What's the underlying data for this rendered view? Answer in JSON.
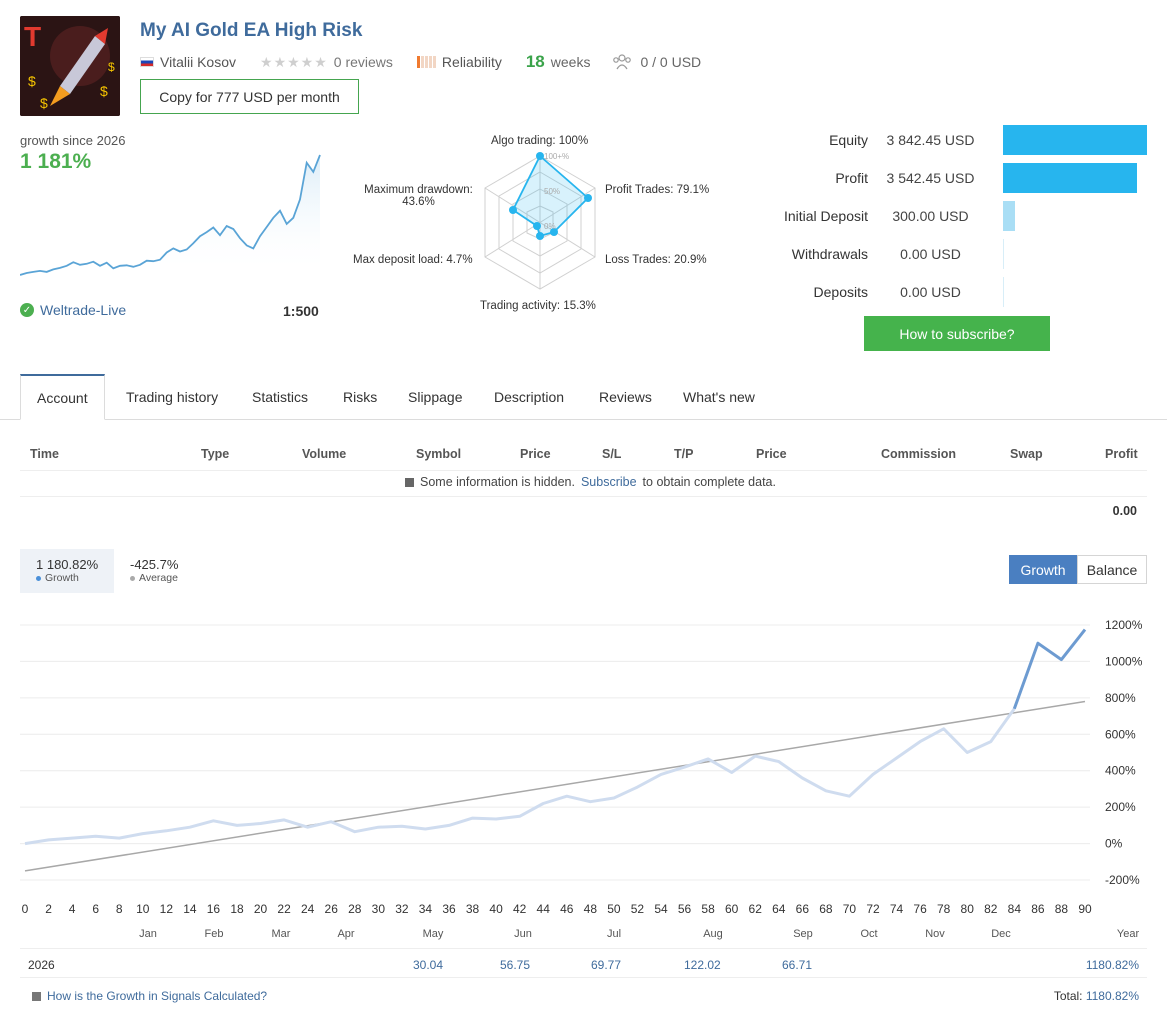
{
  "header": {
    "title": "My AI Gold EA High Risk",
    "author": "Vitalii Kosov",
    "reviews": "0 reviews",
    "reliability": "Reliability",
    "weeks_num": "18",
    "weeks_label": "weeks",
    "subscribers": "0 / 0 USD",
    "copy_button": "Copy for 777 USD per month"
  },
  "growth": {
    "label": "growth since 2026",
    "value": "1 181%",
    "broker": "Weltrade-Live",
    "leverage": "1:500"
  },
  "radar": {
    "algo": "Algo trading: 100%",
    "profit_trades": "Profit Trades: 79.1%",
    "loss_trades": "Loss Trades: 20.9%",
    "activity": "Trading activity: 15.3%",
    "deposit_load": "Max deposit load: 4.7%",
    "drawdown": "Maximum drawdown:",
    "drawdown_val": "43.6%",
    "scale_100": "100+%",
    "scale_50": "50%",
    "scale_0": "0%"
  },
  "summary": [
    {
      "label": "Equity",
      "value": "3 842.45 USD",
      "bar": 1.0
    },
    {
      "label": "Profit",
      "value": "3 542.45 USD",
      "bar": 0.93
    },
    {
      "label": "Initial Deposit",
      "value": "300.00 USD",
      "bar": 0.08
    },
    {
      "label": "Withdrawals",
      "value": "0.00 USD",
      "bar": 0.0
    },
    {
      "label": "Deposits",
      "value": "0.00 USD",
      "bar": 0.0
    }
  ],
  "how_button": "How to subscribe?",
  "tabs": [
    "Account",
    "Trading history",
    "Statistics",
    "Risks",
    "Slippage",
    "Description",
    "Reviews",
    "What's new"
  ],
  "table": {
    "headers": [
      "Time",
      "Type",
      "Volume",
      "Symbol",
      "Price",
      "S/L",
      "T/P",
      "Price",
      "Commission",
      "Swap",
      "Profit"
    ],
    "hidden_pre": "Some information is hidden.",
    "hidden_link": "Subscribe",
    "hidden_post": "to obtain complete data.",
    "total": "0.00"
  },
  "legend": {
    "growth_val": "1 180.82%",
    "growth_lbl": "Growth",
    "avg_val": "-425.7%",
    "avg_lbl": "Average",
    "btn_growth": "Growth",
    "btn_balance": "Balance"
  },
  "colors": {
    "growth_line": "#6d9bd1",
    "growth_light": "#cfdcef",
    "trend_line": "#a8a8a8",
    "accent_green": "#45b34c",
    "bar_blue": "#27b5ee"
  },
  "chart_data": {
    "type": "line",
    "ylim": [
      -200,
      1200
    ],
    "y_ticks": [
      "1200%",
      "1000%",
      "800%",
      "600%",
      "400%",
      "200%",
      "0%",
      "-200%"
    ],
    "x_ticks": [
      "0",
      "2",
      "4",
      "6",
      "8",
      "10",
      "12",
      "14",
      "16",
      "18",
      "20",
      "22",
      "24",
      "26",
      "28",
      "30",
      "32",
      "34",
      "36",
      "38",
      "40",
      "42",
      "44",
      "46",
      "48",
      "50",
      "52",
      "54",
      "56",
      "58",
      "60",
      "62",
      "64",
      "66",
      "68",
      "70",
      "72",
      "74",
      "76",
      "78",
      "80",
      "82",
      "84",
      "86",
      "88",
      "90"
    ],
    "months": [
      "Jan",
      "Feb",
      "Mar",
      "Apr",
      "May",
      "Jun",
      "Jul",
      "Aug",
      "Sep",
      "Oct",
      "Nov",
      "Dec"
    ],
    "year_label": "Year",
    "series": [
      {
        "name": "Growth",
        "x": [
          0,
          2,
          4,
          6,
          8,
          10,
          12,
          14,
          16,
          18,
          20,
          22,
          24,
          26,
          28,
          30,
          32,
          34,
          36,
          38,
          40,
          42,
          44,
          46,
          48,
          50,
          52,
          54,
          56,
          58,
          60,
          62,
          64,
          66,
          68,
          70,
          72,
          74,
          76,
          78,
          80,
          82,
          84,
          86,
          88,
          90
        ],
        "values": [
          0,
          20,
          30,
          40,
          30,
          55,
          70,
          90,
          125,
          100,
          110,
          130,
          90,
          120,
          65,
          90,
          95,
          80,
          100,
          140,
          135,
          150,
          220,
          260,
          230,
          250,
          310,
          380,
          420,
          465,
          390,
          480,
          450,
          360,
          290,
          260,
          380,
          470,
          560,
          630,
          500,
          560,
          740,
          1100,
          1010,
          1175
        ]
      },
      {
        "name": "Average",
        "x": [
          0,
          90
        ],
        "values": [
          -150,
          780
        ]
      }
    ]
  },
  "year_row": {
    "year": "2026",
    "cells": [
      {
        "month": "May",
        "value": "30.04"
      },
      {
        "month": "Jun",
        "value": "56.75"
      },
      {
        "month": "Jul",
        "value": "69.77"
      },
      {
        "month": "Aug",
        "value": "122.02"
      },
      {
        "month": "Sep",
        "value": "66.71"
      }
    ],
    "year_total": "1180.82%"
  },
  "footer": {
    "question": "How is the Growth in Signals Calculated?",
    "total_label": "Total:",
    "total_value": "1180.82%"
  }
}
